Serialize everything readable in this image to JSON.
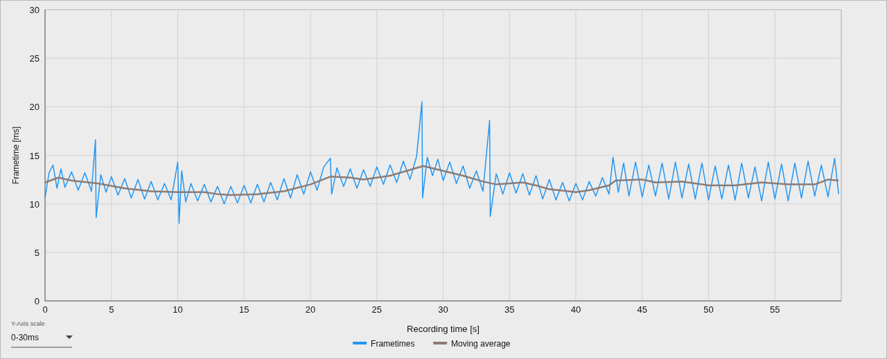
{
  "chart_data": {
    "type": "line",
    "xlabel": "Recording time [s]",
    "ylabel": "Frametime [ms]",
    "xlim": [
      0,
      60
    ],
    "ylim": [
      0,
      30
    ],
    "xticks": [
      0,
      5,
      10,
      15,
      20,
      25,
      30,
      35,
      40,
      45,
      50,
      55
    ],
    "yticks": [
      0,
      5,
      10,
      15,
      20,
      25,
      30
    ],
    "grid": true,
    "legend": "bottom",
    "annotations": [
      "Y-Axis scale",
      "0-30ms"
    ],
    "series": [
      {
        "name": "Frametimes",
        "color": "#2196f3",
        "x": [
          0,
          0.3,
          0.6,
          0.9,
          1.2,
          1.5,
          2,
          2.5,
          3,
          3.5,
          3.8,
          3.85,
          4.2,
          4.6,
          5,
          5.5,
          6,
          6.5,
          7,
          7.5,
          8,
          8.5,
          9,
          9.5,
          10,
          10.1,
          10.3,
          10.6,
          11,
          11.5,
          12,
          12.5,
          13,
          13.5,
          14,
          14.5,
          15,
          15.5,
          16,
          16.5,
          17,
          17.5,
          18,
          18.5,
          19,
          19.5,
          20,
          20.5,
          21,
          21.5,
          21.6,
          22,
          22.5,
          23,
          23.5,
          24,
          24.5,
          25,
          25.5,
          26,
          26.5,
          27,
          27.5,
          28,
          28.4,
          28.45,
          28.8,
          29.2,
          29.6,
          30,
          30.5,
          31,
          31.5,
          32,
          32.5,
          33,
          33.5,
          33.55,
          34,
          34.5,
          35,
          35.5,
          36,
          36.5,
          37,
          37.5,
          38,
          38.5,
          39,
          39.5,
          40,
          40.5,
          41,
          41.5,
          42,
          42.5,
          42.8,
          43.2,
          43.6,
          44,
          44.5,
          45,
          45.5,
          46,
          46.5,
          47,
          47.5,
          48,
          48.5,
          49,
          49.5,
          50,
          50.5,
          51,
          51.5,
          52,
          52.5,
          53,
          53.5,
          54,
          54.5,
          55,
          55.5,
          56,
          56.5,
          57,
          57.5,
          58,
          58.5,
          59,
          59.5,
          59.8
        ],
        "values": [
          10.6,
          13.2,
          14.0,
          11.6,
          13.6,
          11.7,
          13.3,
          11.4,
          13.2,
          11.3,
          16.6,
          8.6,
          13.0,
          11.2,
          12.8,
          10.9,
          12.6,
          10.6,
          12.5,
          10.5,
          12.3,
          10.4,
          12.1,
          10.4,
          14.3,
          8.0,
          13.4,
          10.2,
          12.1,
          10.3,
          12.0,
          10.2,
          11.8,
          10.0,
          11.8,
          10.1,
          11.9,
          10.1,
          12.0,
          10.2,
          12.2,
          10.4,
          12.6,
          10.6,
          13.0,
          11.0,
          13.3,
          11.4,
          13.8,
          14.7,
          11.0,
          13.7,
          11.8,
          13.6,
          11.6,
          13.5,
          11.8,
          13.8,
          12.0,
          14.0,
          12.2,
          14.4,
          12.5,
          14.9,
          20.5,
          10.6,
          14.8,
          12.9,
          14.6,
          12.4,
          14.3,
          12.1,
          13.9,
          11.6,
          13.4,
          11.3,
          18.6,
          8.7,
          13.1,
          11.0,
          13.2,
          11.1,
          13.1,
          10.9,
          12.9,
          10.5,
          12.5,
          10.4,
          12.2,
          10.3,
          12.1,
          10.4,
          12.3,
          10.8,
          12.7,
          11.0,
          14.8,
          11.2,
          14.2,
          10.8,
          14.3,
          10.7,
          14.0,
          10.8,
          14.2,
          10.5,
          14.3,
          10.6,
          14.1,
          10.5,
          14.2,
          10.4,
          13.9,
          10.5,
          14.0,
          10.4,
          14.2,
          10.6,
          13.8,
          10.3,
          14.3,
          10.5,
          14.1,
          10.3,
          14.2,
          10.6,
          14.4,
          10.8,
          14.0,
          10.7,
          14.7,
          11.0
        ]
      },
      {
        "name": "Moving average",
        "color": "#8d7b75",
        "x": [
          0,
          1,
          2,
          4,
          6,
          8,
          10,
          12,
          13,
          14,
          16,
          18,
          20,
          21.5,
          23,
          24,
          26,
          28.5,
          30,
          31.5,
          33,
          34,
          36,
          37,
          38,
          40,
          41,
          42.5,
          43,
          45,
          46,
          48,
          50,
          52,
          54,
          56,
          58,
          59,
          59.8
        ],
        "values": [
          12.2,
          12.7,
          12.4,
          12.1,
          11.6,
          11.3,
          11.2,
          11.2,
          11.0,
          10.9,
          11.0,
          11.3,
          12.0,
          12.8,
          12.7,
          12.5,
          12.9,
          13.9,
          13.4,
          12.9,
          12.3,
          12.0,
          12.2,
          11.9,
          11.5,
          11.2,
          11.4,
          11.9,
          12.4,
          12.5,
          12.2,
          12.3,
          11.9,
          11.9,
          12.2,
          12.0,
          12.0,
          12.5,
          12.4
        ]
      }
    ]
  }
}
